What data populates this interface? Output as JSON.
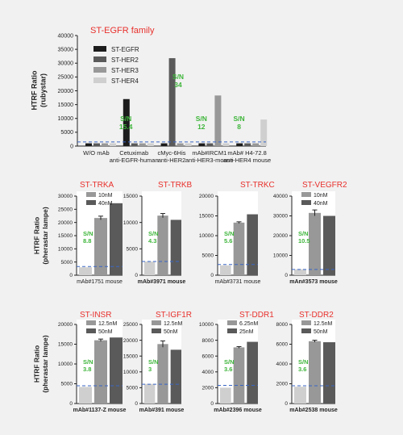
{
  "colors": {
    "bg": "#f1f1f1",
    "title": "#e8312d",
    "sn": "#3db53a",
    "axis": "#222222",
    "dash": "#3a66c4",
    "black": "#1c1c1c",
    "dark": "#5a5a5a",
    "mid": "#989898",
    "light": "#cfcfcf",
    "baseline": "#ebebeb"
  },
  "chart_data": [
    {
      "id": "egfr",
      "type": "bar",
      "title": "ST-EGFR family",
      "ylabel": [
        "HTRF Ratio",
        "(rubystar)"
      ],
      "ylim": [
        0,
        40000
      ],
      "yticks": [
        0,
        5000,
        10000,
        15000,
        20000,
        25000,
        30000,
        35000,
        40000
      ],
      "ytick_labels": [
        "0",
        "5000",
        "10000",
        "15000",
        "20000",
        "25000",
        "30000",
        "35000",
        "40000"
      ],
      "categories": [
        [
          "W/O mAb"
        ],
        [
          "Cetuximab",
          "anti-EGFR-human"
        ],
        [
          "cMyc-6His",
          "anti-HER2"
        ],
        [
          "mAb#IRCM1",
          "anti-HER3-mouse"
        ],
        [
          "mAb# H4-72.8",
          "anti-HER4 mouse"
        ]
      ],
      "series": [
        {
          "name": "ST-EGFR",
          "color": "black",
          "values": [
            1000,
            17000,
            1000,
            1000,
            1000
          ]
        },
        {
          "name": "ST-HER2",
          "color": "dark",
          "values": [
            1000,
            1000,
            31800,
            1000,
            1000
          ]
        },
        {
          "name": "ST-HER3",
          "color": "mid",
          "values": [
            1000,
            1000,
            1000,
            18300,
            1000
          ]
        },
        {
          "name": "ST-HER4",
          "color": "light",
          "values": [
            1000,
            1000,
            1000,
            1000,
            9600
          ]
        }
      ],
      "threshold": 1500,
      "annotations": [
        {
          "cat": 1,
          "text": [
            "S/N",
            "15.4"
          ]
        },
        {
          "cat": 2,
          "text": [
            "S/N",
            "34"
          ]
        },
        {
          "cat": 3,
          "text": [
            "S/N",
            "12"
          ]
        },
        {
          "cat": 4,
          "text": [
            "S/N",
            "8"
          ]
        }
      ]
    },
    {
      "id": "trka",
      "type": "bar",
      "title": "ST-TRKA",
      "xlabel": "mAb#1751 mouse",
      "ylabel": [
        "HTRF Ratio",
        "(pherastar lampe)"
      ],
      "ylim": [
        0,
        30000
      ],
      "yticks": [
        0,
        5000,
        10000,
        15000,
        20000,
        25000,
        30000
      ],
      "ytick_labels": [
        "0",
        "5000",
        "10000",
        "15000",
        "20000",
        "25000",
        "30000"
      ],
      "values": [
        3000,
        21700,
        27300
      ],
      "errors": [
        0,
        700,
        0
      ],
      "legend": [
        "10nM",
        "40nM"
      ],
      "threshold": 3300,
      "sn": [
        "S/N",
        "8.8"
      ]
    },
    {
      "id": "trkb",
      "type": "bar",
      "title": "ST-TRKB",
      "xlabel": "mAb#3971 mouse",
      "ylim": [
        0,
        15000
      ],
      "yticks": [
        0,
        5000,
        10000,
        15000
      ],
      "ytick_labels": [
        "0",
        "5000",
        "10000",
        "15000"
      ],
      "values": [
        2600,
        11300,
        10500
      ],
      "errors": [
        0,
        400,
        0
      ],
      "threshold": 2600,
      "sn": [
        "S/N",
        "4.3"
      ]
    },
    {
      "id": "trkc",
      "type": "bar",
      "title": "ST-TRKC",
      "xlabel": "mAb#3731 mouse",
      "ylim": [
        0,
        20000
      ],
      "yticks": [
        0,
        5000,
        10000,
        15000,
        20000
      ],
      "ytick_labels": [
        "0",
        "5000",
        "10000",
        "15000",
        "20000"
      ],
      "values": [
        2500,
        13300,
        15400
      ],
      "errors": [
        0,
        200,
        0
      ],
      "threshold": 2700,
      "sn": [
        "S/N",
        "5.6"
      ]
    },
    {
      "id": "vegfr2",
      "type": "bar",
      "title": "ST-VEGFR2",
      "xlabel": "mAn#3573 mouse",
      "ylim": [
        0,
        40000
      ],
      "yticks": [
        0,
        10000,
        20000,
        30000,
        40000
      ],
      "ytick_labels": [
        "0",
        "10000",
        "20000",
        "30000",
        "40000"
      ],
      "values": [
        3000,
        31500,
        30000
      ],
      "errors": [
        0,
        1500,
        0
      ],
      "legend": [
        "10nM",
        "40nM"
      ],
      "threshold": 2900,
      "sn": [
        "S/N",
        "10.5"
      ]
    },
    {
      "id": "insr",
      "type": "bar",
      "title": "ST-INSR",
      "xlabel": "mAb#1137-Z mouse",
      "ylabel": [
        "HTRF Ratio",
        "(pherastar lampe)"
      ],
      "ylim": [
        0,
        20000
      ],
      "yticks": [
        0,
        5000,
        10000,
        15000,
        20000
      ],
      "ytick_labels": [
        "0",
        "5000",
        "10000",
        "15000",
        "20000"
      ],
      "values": [
        4200,
        16000,
        16700
      ],
      "errors": [
        0,
        300,
        0
      ],
      "legend": [
        "12.5nM",
        "50nM"
      ],
      "threshold": 4500,
      "sn": [
        "S/N",
        "3.8"
      ]
    },
    {
      "id": "igf1r",
      "type": "bar",
      "title": "ST-IGF1R",
      "xlabel": "mAb#391 mouse",
      "ylim": [
        0,
        25000
      ],
      "yticks": [
        0,
        5000,
        10000,
        15000,
        20000,
        25000
      ],
      "ytick_labels": [
        "0",
        "5000",
        "10000",
        "15000",
        "20000",
        "25000"
      ],
      "values": [
        6200,
        18800,
        17000
      ],
      "errors": [
        0,
        1000,
        0
      ],
      "legend": [
        "12.5nM",
        "50nM"
      ],
      "threshold": 6100,
      "sn": [
        "S/N",
        "3"
      ]
    },
    {
      "id": "ddr1",
      "type": "bar",
      "title": "ST-DDR1",
      "xlabel": "mAb#2396 mouse",
      "ylim": [
        0,
        10000
      ],
      "yticks": [
        0,
        2000,
        4000,
        6000,
        8000,
        10000
      ],
      "ytick_labels": [
        "0",
        "2000",
        "4000",
        "6000",
        "8000",
        "10000"
      ],
      "values": [
        2000,
        7100,
        7800
      ],
      "errors": [
        0,
        100,
        0
      ],
      "legend": [
        "6.25nM",
        "25nM"
      ],
      "threshold": 2300,
      "sn": [
        "S/N",
        "3.6"
      ]
    },
    {
      "id": "ddr2",
      "type": "bar",
      "title": "ST-DDR2",
      "xlabel": "mAb#2538 mouse",
      "ylim": [
        0,
        8000
      ],
      "yticks": [
        0,
        2000,
        4000,
        6000,
        8000
      ],
      "ytick_labels": [
        "0",
        "2000",
        "4000",
        "6000",
        "8000"
      ],
      "values": [
        1700,
        6300,
        6200
      ],
      "errors": [
        0,
        100,
        0
      ],
      "legend": [
        "12.5nM",
        "50nM"
      ],
      "threshold": 1800,
      "sn": [
        "S/N",
        "3.6"
      ]
    }
  ]
}
